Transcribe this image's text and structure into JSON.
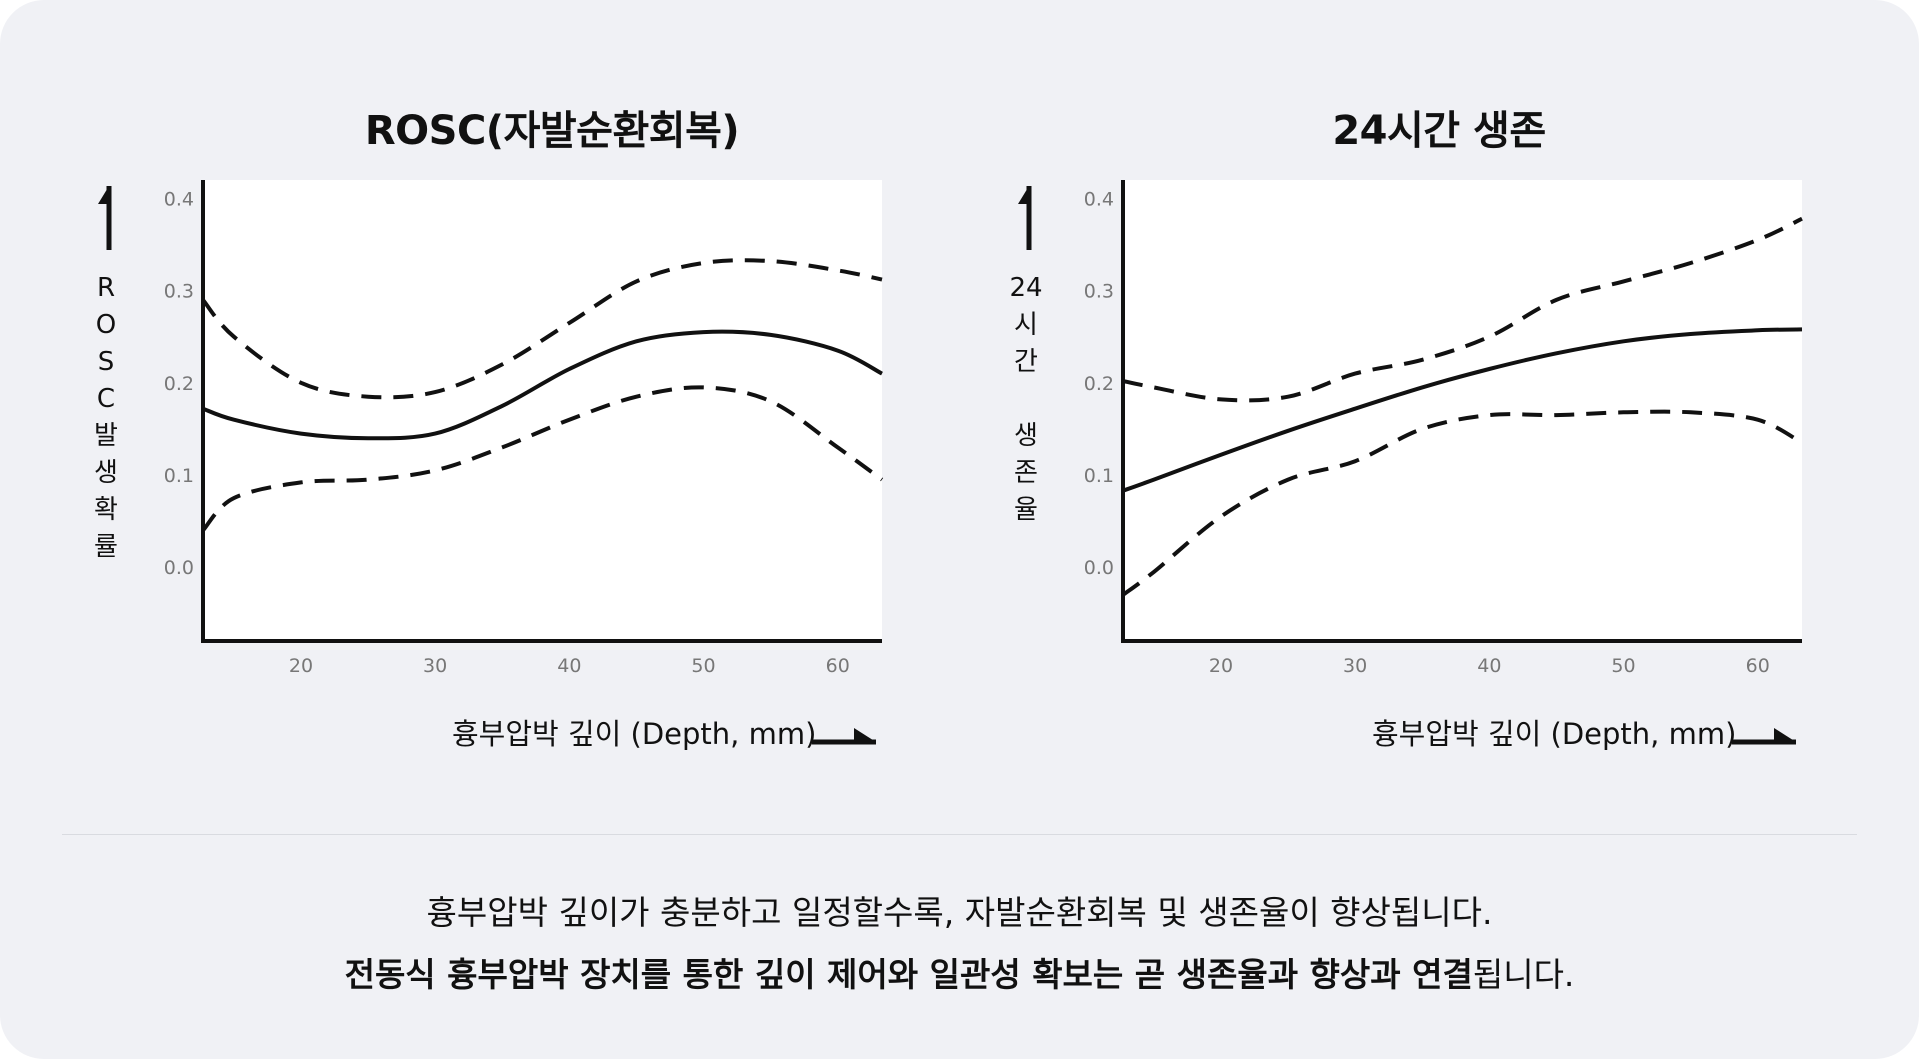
{
  "chart_data": [
    {
      "type": "line",
      "title": "ROSC(자발순환회복)",
      "ylabel": "ROSC발생확률",
      "xlabel": "흉부압박 깊이 (Depth, mm)",
      "xlim": [
        12.7,
        63.3
      ],
      "ylim": [
        -0.08,
        0.42
      ],
      "x_ticks": [
        20,
        30,
        40,
        50,
        60
      ],
      "y_ticks": [
        "0.0",
        "0.1",
        "0.2",
        "0.3",
        "0.4"
      ],
      "y_tick_values": [
        0.0,
        0.1,
        0.2,
        0.3,
        0.4
      ],
      "series": [
        {
          "style": "solid",
          "x": [
            12.7,
            15,
            20,
            25,
            30,
            35,
            40,
            45,
            50,
            55,
            60,
            63.3
          ],
          "y": [
            0.172,
            0.16,
            0.145,
            0.14,
            0.145,
            0.175,
            0.215,
            0.245,
            0.255,
            0.252,
            0.235,
            0.21
          ]
        },
        {
          "style": "dashed",
          "x": [
            12.7,
            15,
            20,
            25,
            30,
            35,
            40,
            45,
            50,
            55,
            60,
            63.3
          ],
          "y": [
            0.29,
            0.25,
            0.2,
            0.185,
            0.19,
            0.22,
            0.265,
            0.31,
            0.33,
            0.332,
            0.322,
            0.312
          ]
        },
        {
          "style": "dashed",
          "x": [
            12.7,
            15,
            20,
            25,
            30,
            35,
            40,
            45,
            50,
            55,
            60,
            63.3
          ],
          "y": [
            0.04,
            0.075,
            0.092,
            0.095,
            0.105,
            0.13,
            0.16,
            0.185,
            0.195,
            0.18,
            0.13,
            0.095
          ]
        }
      ]
    },
    {
      "type": "line",
      "title": "24시간 생존",
      "ylabel": "24\n시\n간\n \n생\n존\n율",
      "xlabel": "흉부압박 깊이 (Depth, mm)",
      "xlim": [
        12.7,
        63.3
      ],
      "ylim": [
        -0.08,
        0.42
      ],
      "x_ticks": [
        20,
        30,
        40,
        50,
        60
      ],
      "y_ticks": [
        "0.0",
        "0.1",
        "0.2",
        "0.3",
        "0.4"
      ],
      "y_tick_values": [
        0.0,
        0.1,
        0.2,
        0.3,
        0.4
      ],
      "series": [
        {
          "style": "solid",
          "x": [
            12.7,
            15,
            20,
            25,
            30,
            35,
            40,
            45,
            50,
            55,
            60,
            63.3
          ],
          "y": [
            0.083,
            0.095,
            0.122,
            0.148,
            0.172,
            0.195,
            0.215,
            0.232,
            0.245,
            0.253,
            0.257,
            0.258
          ]
        },
        {
          "style": "dashed",
          "x": [
            12.7,
            15,
            20,
            25,
            30,
            35,
            40,
            45,
            50,
            55,
            60,
            63.3
          ],
          "y": [
            0.202,
            0.195,
            0.182,
            0.185,
            0.21,
            0.225,
            0.25,
            0.29,
            0.31,
            0.33,
            0.355,
            0.378
          ]
        },
        {
          "style": "dashed",
          "x": [
            12.7,
            15,
            20,
            25,
            30,
            35,
            40,
            45,
            50,
            55,
            60,
            63.3
          ],
          "y": [
            -0.03,
            -0.005,
            0.055,
            0.095,
            0.115,
            0.15,
            0.165,
            0.165,
            0.168,
            0.168,
            0.16,
            0.135
          ]
        }
      ]
    }
  ],
  "caption": {
    "line1": "흉부압박 깊이가 충분하고 일정할수록, 자발순환회복 및 생존율이 향상됩니다.",
    "line2_bold": "전동식 흉부압박 장치를 통한 깊이 제어와 일관성 확보는 곧 생존율과 향상과 연결",
    "line2_tail": "됩니다."
  }
}
